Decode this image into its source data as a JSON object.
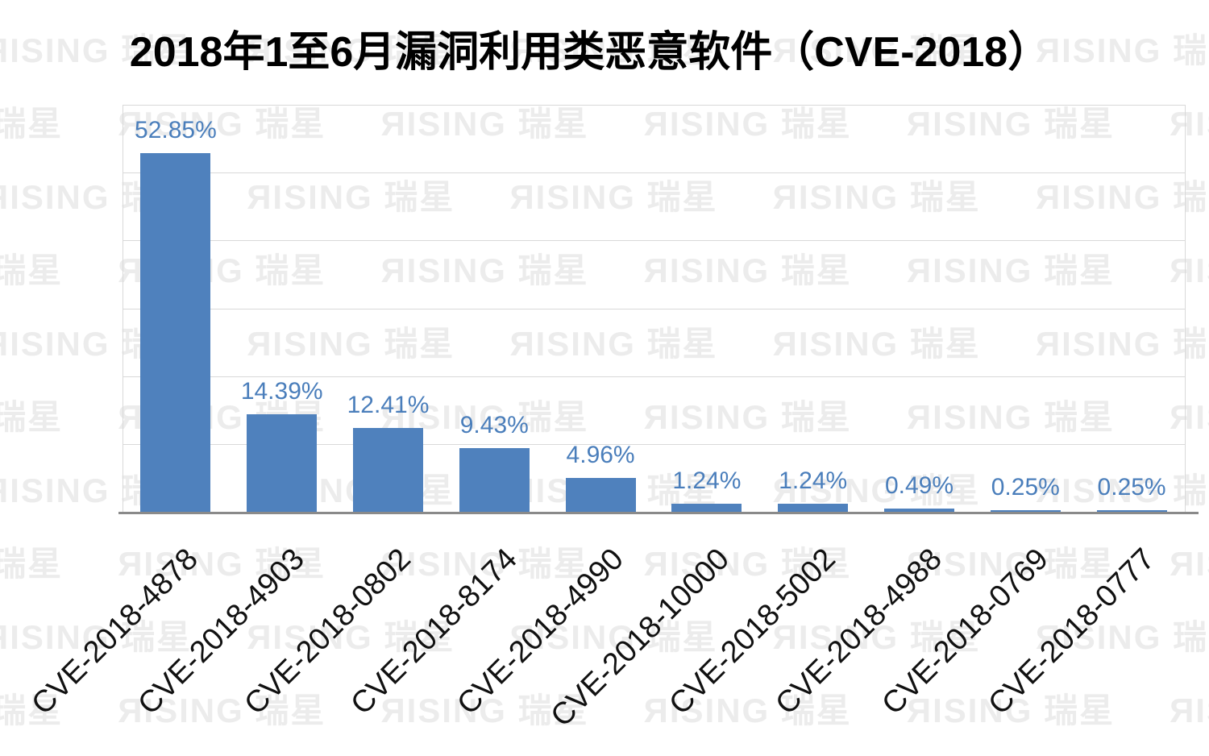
{
  "title": "2018年1至6月漏洞利用类恶意软件（CVE-2018）",
  "watermark": {
    "text": "ЯISING 瑞星",
    "color": "#ececec"
  },
  "chart_data": {
    "type": "bar",
    "title": "2018年1至6月漏洞利用类恶意软件（CVE-2018）",
    "categories": [
      "CVE-2018-4878",
      "CVE-2018-4903",
      "CVE-2018-0802",
      "CVE-2018-8174",
      "CVE-2018-4990",
      "CVE-2018-10000",
      "CVE-2018-5002",
      "CVE-2018-4988",
      "CVE-2018-0769",
      "CVE-2018-0777"
    ],
    "values": [
      52.85,
      14.39,
      12.41,
      9.43,
      4.96,
      1.24,
      1.24,
      0.49,
      0.25,
      0.25
    ],
    "labels": [
      "52.85%",
      "14.39%",
      "12.41%",
      "9.43%",
      "4.96%",
      "1.24%",
      "1.24%",
      "0.49%",
      "0.25%",
      "0.25%"
    ],
    "xlabel": "",
    "ylabel": "",
    "ylim": [
      0,
      60
    ],
    "gridline_interval": 10,
    "grid": true,
    "legend": "none",
    "bar_color": "#4f81bd",
    "value_label_color": "#4a7ebb",
    "gridline_color": "#d9d9d9",
    "axis_line_color": "#8a8a8a",
    "category_label_color": "#111111",
    "title_color": "#000000"
  }
}
